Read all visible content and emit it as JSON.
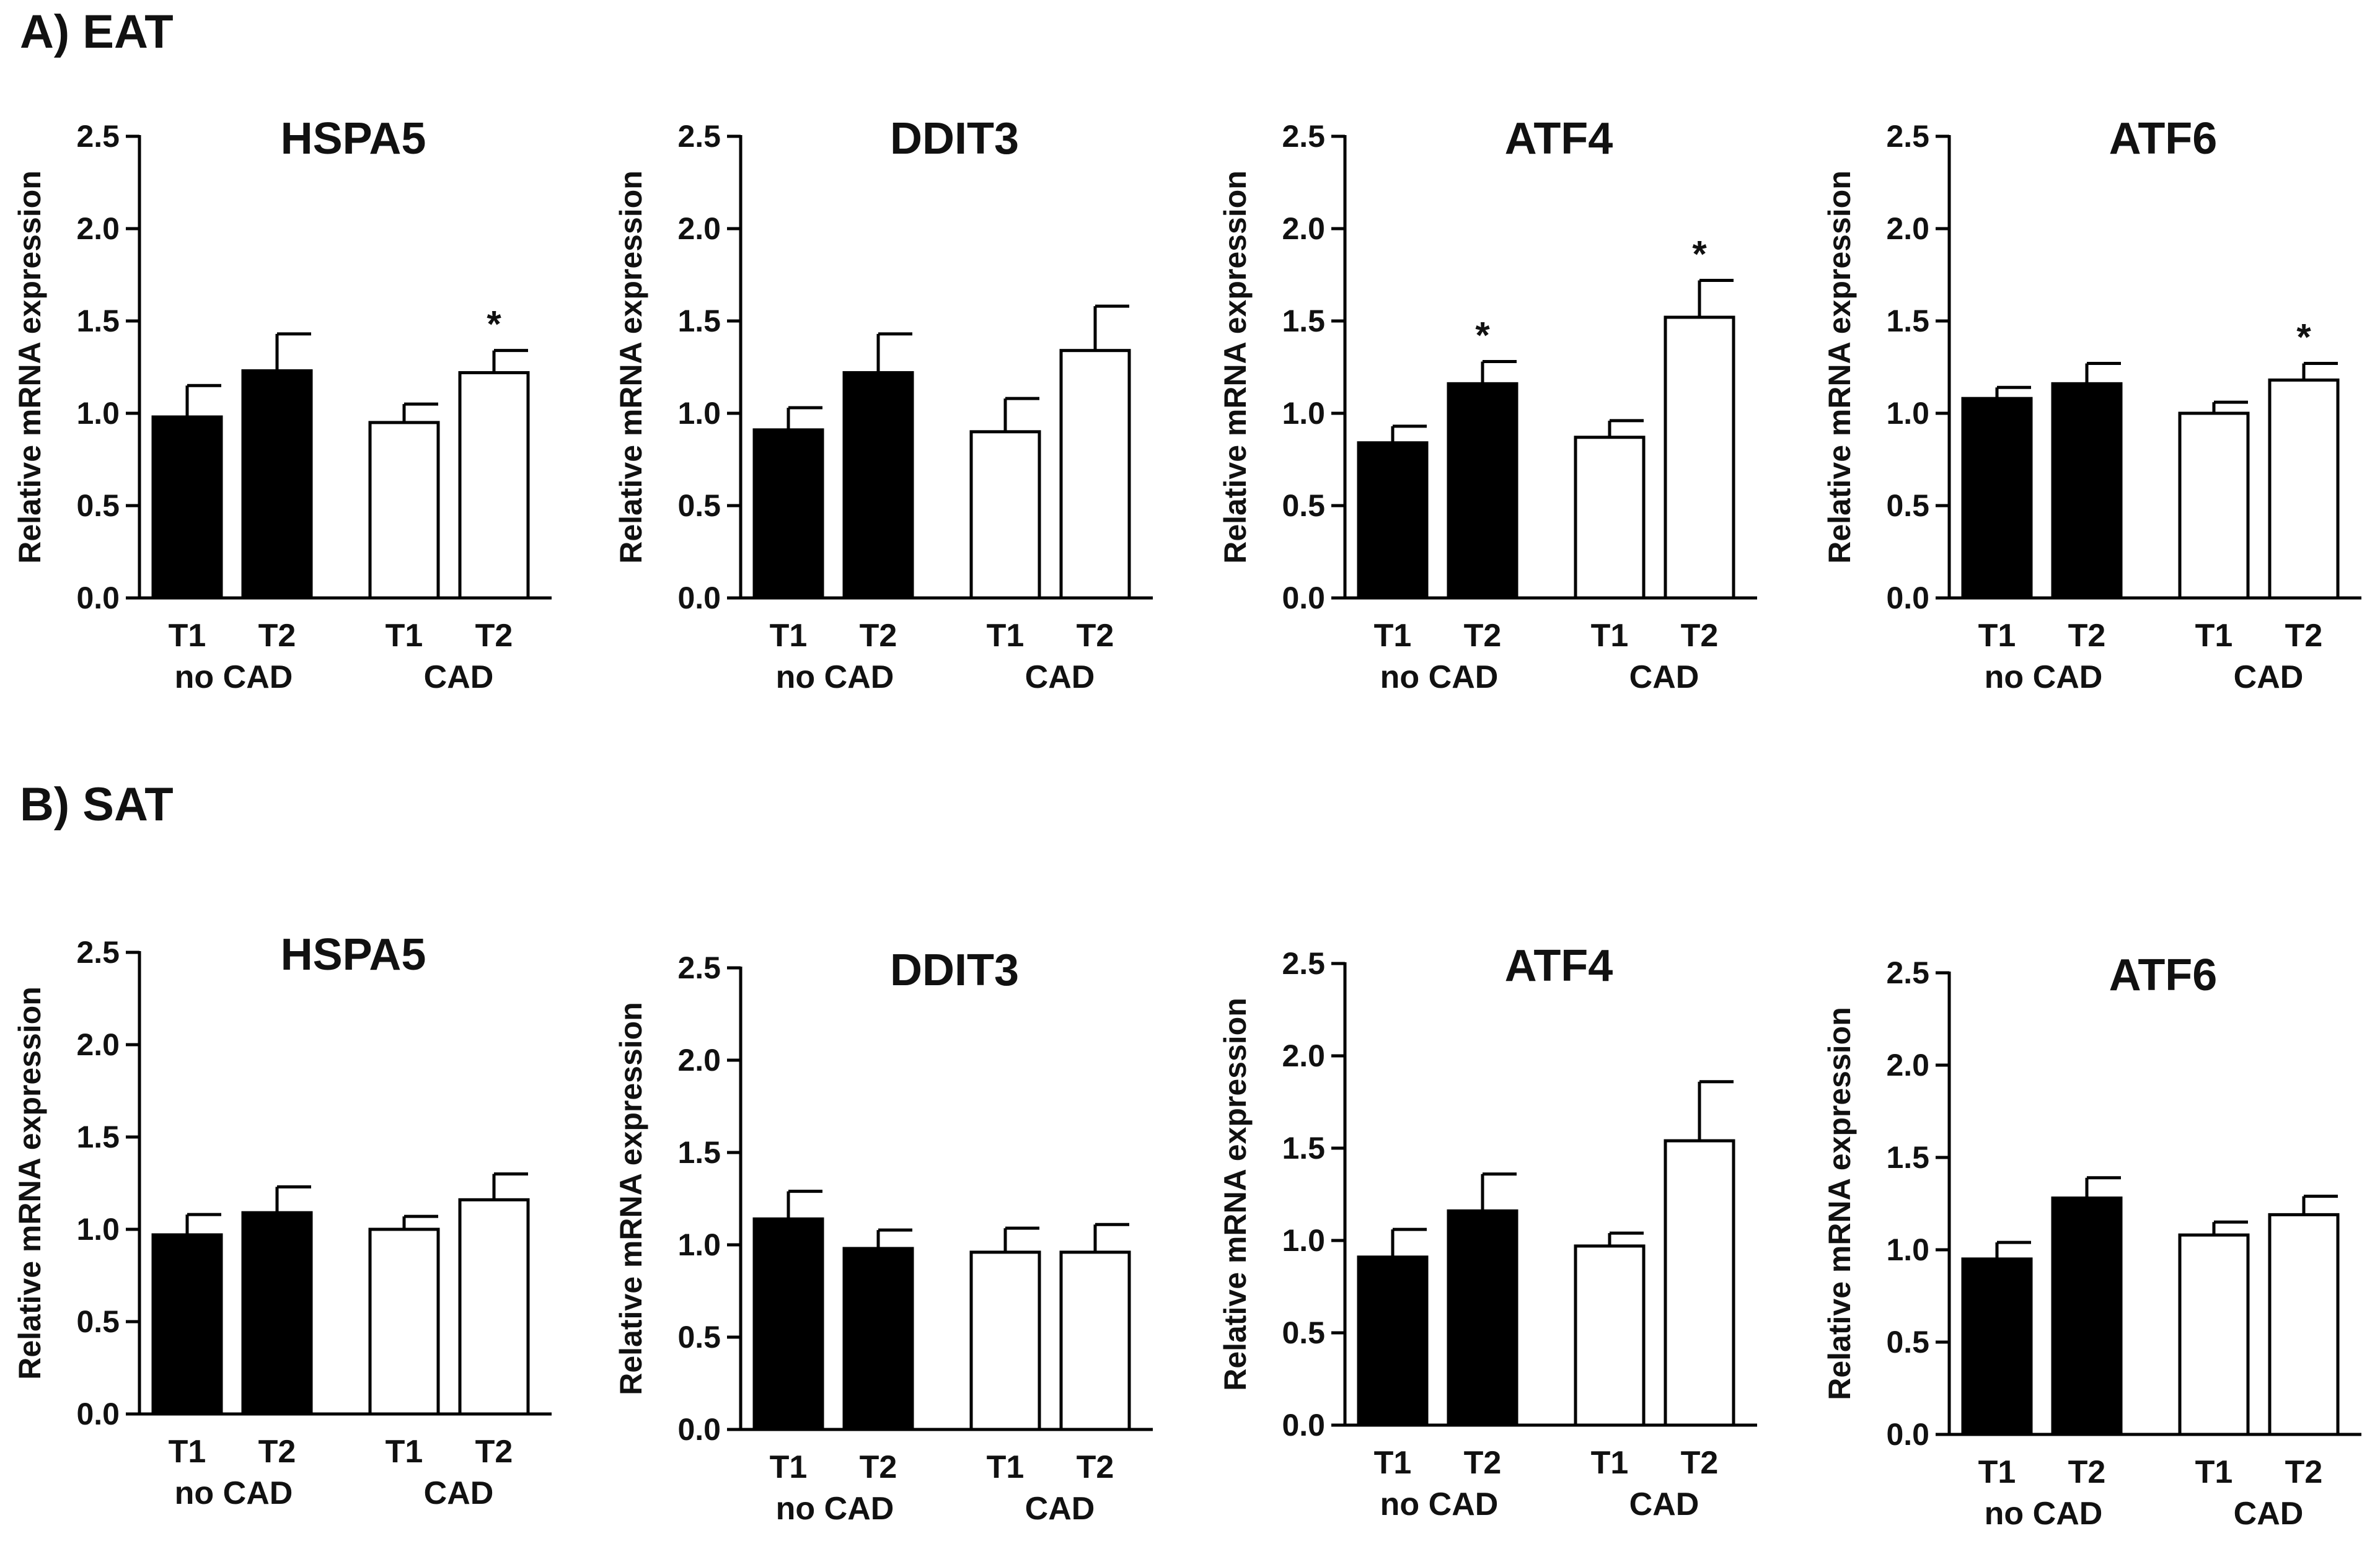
{
  "panels": {
    "a_label": "A) EAT",
    "b_label": "B) SAT"
  },
  "colors": {
    "no_cad_fill": "#000000",
    "cad_fill": "#ffffff",
    "outline": "#000000"
  },
  "chart_data": [
    {
      "type": "bar",
      "panel": "A) EAT",
      "title": "HSPA5",
      "ylabel": "Relative mRNA expression",
      "ylim": [
        0,
        2.5
      ],
      "yticks": [
        "0.0",
        "0.5",
        "1.0",
        "1.5",
        "2.0",
        "2.5"
      ],
      "categories": [
        "T1",
        "T2",
        "T1",
        "T2"
      ],
      "groups": [
        "no CAD",
        "CAD"
      ],
      "values": [
        0.98,
        1.23,
        0.95,
        1.22
      ],
      "errors": [
        0.17,
        0.2,
        0.1,
        0.12
      ],
      "annotations": [
        "",
        "",
        "",
        "*"
      ]
    },
    {
      "type": "bar",
      "panel": "A) EAT",
      "title": "DDIT3",
      "ylabel": "Relative mRNA expression",
      "ylim": [
        0,
        2.5
      ],
      "yticks": [
        "0.0",
        "0.5",
        "1.0",
        "1.5",
        "2.0",
        "2.5"
      ],
      "categories": [
        "T1",
        "T2",
        "T1",
        "T2"
      ],
      "groups": [
        "no CAD",
        "CAD"
      ],
      "values": [
        0.91,
        1.22,
        0.9,
        1.34
      ],
      "errors": [
        0.12,
        0.21,
        0.18,
        0.24
      ],
      "annotations": [
        "",
        "",
        "",
        ""
      ]
    },
    {
      "type": "bar",
      "panel": "A) EAT",
      "title": "ATF4",
      "ylabel": "Relative mRNA expression",
      "ylim": [
        0,
        2.5
      ],
      "yticks": [
        "0.0",
        "0.5",
        "1.0",
        "1.5",
        "2.0",
        "2.5"
      ],
      "categories": [
        "T1",
        "T2",
        "T1",
        "T2"
      ],
      "groups": [
        "no CAD",
        "CAD"
      ],
      "values": [
        0.84,
        1.16,
        0.87,
        1.52
      ],
      "errors": [
        0.09,
        0.12,
        0.09,
        0.2
      ],
      "annotations": [
        "",
        "*",
        "",
        "*"
      ]
    },
    {
      "type": "bar",
      "panel": "A) EAT",
      "title": "ATF6",
      "ylabel": "Relative mRNA expression",
      "ylim": [
        0,
        2.5
      ],
      "yticks": [
        "0.0",
        "0.5",
        "1.0",
        "1.5",
        "2.0",
        "2.5"
      ],
      "categories": [
        "T1",
        "T2",
        "T1",
        "T2"
      ],
      "groups": [
        "no CAD",
        "CAD"
      ],
      "values": [
        1.08,
        1.16,
        1.0,
        1.18
      ],
      "errors": [
        0.06,
        0.11,
        0.06,
        0.09
      ],
      "annotations": [
        "",
        "",
        "",
        "*"
      ]
    },
    {
      "type": "bar",
      "panel": "B) SAT",
      "title": "HSPA5",
      "ylabel": "Relative mRNA expression",
      "ylim": [
        0,
        2.5
      ],
      "yticks": [
        "0.0",
        "0.5",
        "1.0",
        "1.5",
        "2.0",
        "2.5"
      ],
      "categories": [
        "T1",
        "T2",
        "T1",
        "T2"
      ],
      "groups": [
        "no CAD",
        "CAD"
      ],
      "values": [
        0.97,
        1.09,
        1.0,
        1.16
      ],
      "errors": [
        0.11,
        0.14,
        0.07,
        0.14
      ],
      "annotations": [
        "",
        "",
        "",
        ""
      ]
    },
    {
      "type": "bar",
      "panel": "B) SAT",
      "title": "DDIT3",
      "ylabel": "Relative mRNA expression",
      "ylim": [
        0,
        2.5
      ],
      "yticks": [
        "0.0",
        "0.5",
        "1.0",
        "1.5",
        "2.0",
        "2.5"
      ],
      "categories": [
        "T1",
        "T2",
        "T1",
        "T2"
      ],
      "groups": [
        "no CAD",
        "CAD"
      ],
      "values": [
        1.14,
        0.98,
        0.96,
        0.96
      ],
      "errors": [
        0.15,
        0.1,
        0.13,
        0.15
      ],
      "annotations": [
        "",
        "",
        "",
        ""
      ]
    },
    {
      "type": "bar",
      "panel": "B) SAT",
      "title": "ATF4",
      "ylabel": "Relative mRNA expression",
      "ylim": [
        0,
        2.5
      ],
      "yticks": [
        "0.0",
        "0.5",
        "1.0",
        "1.5",
        "2.0",
        "2.5"
      ],
      "categories": [
        "T1",
        "T2",
        "T1",
        "T2"
      ],
      "groups": [
        "no CAD",
        "CAD"
      ],
      "values": [
        0.91,
        1.16,
        0.97,
        1.54
      ],
      "errors": [
        0.15,
        0.2,
        0.07,
        0.32
      ],
      "annotations": [
        "",
        "",
        "",
        ""
      ]
    },
    {
      "type": "bar",
      "panel": "B) SAT",
      "title": "ATF6",
      "ylabel": "Relative mRNA expression",
      "ylim": [
        0,
        2.5
      ],
      "yticks": [
        "0.0",
        "0.5",
        "1.0",
        "1.5",
        "2.0",
        "2.5"
      ],
      "categories": [
        "T1",
        "T2",
        "T1",
        "T2"
      ],
      "groups": [
        "no CAD",
        "CAD"
      ],
      "values": [
        0.95,
        1.28,
        1.08,
        1.19
      ],
      "errors": [
        0.09,
        0.11,
        0.07,
        0.1
      ],
      "annotations": [
        "",
        "",
        "",
        ""
      ]
    }
  ]
}
